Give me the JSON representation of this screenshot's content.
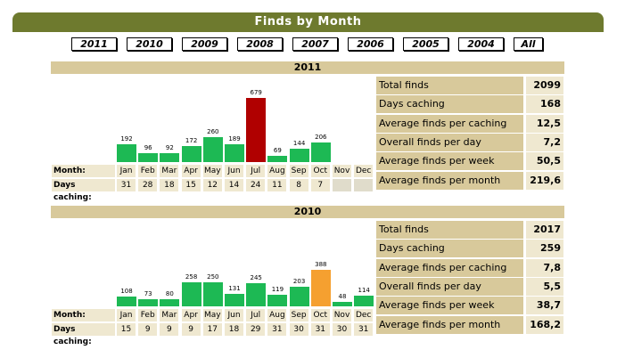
{
  "header": {
    "title": "Finds by Month"
  },
  "year_tabs": [
    "2011",
    "2010",
    "2009",
    "2008",
    "2007",
    "2006",
    "2005",
    "2004",
    "All"
  ],
  "row_labels": {
    "month": "Month:",
    "days": "Days caching:"
  },
  "colors": {
    "normal": "#1db954",
    "max_2011": "#b00000",
    "max_2010": "#f5a030"
  },
  "chart_data": [
    {
      "type": "bar",
      "title": "2011",
      "categories": [
        "Jan",
        "Feb",
        "Mar",
        "Apr",
        "May",
        "Jun",
        "Jul",
        "Aug",
        "Sep",
        "Oct",
        "Nov",
        "Dec"
      ],
      "values": [
        192,
        96,
        92,
        172,
        260,
        189,
        679,
        69,
        144,
        206,
        null,
        null
      ],
      "days_caching": [
        "31",
        "28",
        "18",
        "15",
        "12",
        "14",
        "24",
        "11",
        "8",
        "7",
        "",
        ""
      ],
      "highlight_index": 6,
      "highlight_color": "#b00000",
      "stats": [
        {
          "label": "Total finds",
          "value": "2099"
        },
        {
          "label": "Days caching",
          "value": "168"
        },
        {
          "label": "Average finds per caching day",
          "value": "12,5"
        },
        {
          "label": "Overall finds per day",
          "value": "7,2"
        },
        {
          "label": "Average finds per week",
          "value": "50,5"
        },
        {
          "label": "Average finds per month",
          "value": "219,6"
        }
      ]
    },
    {
      "type": "bar",
      "title": "2010",
      "categories": [
        "Jan",
        "Feb",
        "Mar",
        "Apr",
        "May",
        "Jun",
        "Jul",
        "Aug",
        "Sep",
        "Oct",
        "Nov",
        "Dec"
      ],
      "values": [
        108,
        73,
        80,
        258,
        250,
        131,
        245,
        119,
        203,
        388,
        48,
        114
      ],
      "days_caching": [
        "15",
        "9",
        "9",
        "9",
        "17",
        "18",
        "29",
        "31",
        "30",
        "31",
        "30",
        "31"
      ],
      "highlight_index": 9,
      "highlight_color": "#f5a030",
      "stats": [
        {
          "label": "Total finds",
          "value": "2017"
        },
        {
          "label": "Days caching",
          "value": "259"
        },
        {
          "label": "Average finds per caching day",
          "value": "7,8"
        },
        {
          "label": "Overall finds per day",
          "value": "5,5"
        },
        {
          "label": "Average finds per week",
          "value": "38,7"
        },
        {
          "label": "Average finds per month",
          "value": "168,2"
        }
      ]
    }
  ]
}
